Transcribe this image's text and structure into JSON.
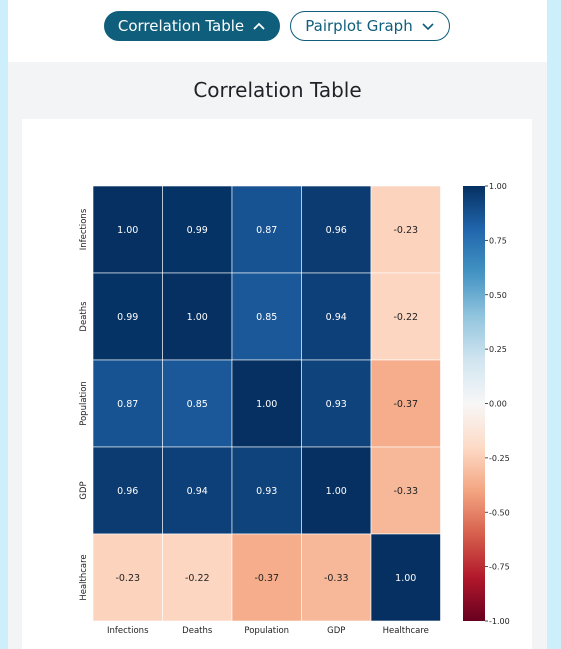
{
  "tabs": {
    "correlation_label": "Correlation Table",
    "pairplot_label": "Pairplot Graph"
  },
  "page_title": "Correlation Table",
  "chart_data": {
    "type": "heatmap",
    "x_labels": [
      "Infections",
      "Deaths",
      "Population",
      "GDP",
      "Healthcare"
    ],
    "y_labels": [
      "Infections",
      "Deaths",
      "Population",
      "GDP",
      "Healthcare"
    ],
    "values": [
      [
        1.0,
        0.99,
        0.87,
        0.96,
        -0.23
      ],
      [
        0.99,
        1.0,
        0.85,
        0.94,
        -0.22
      ],
      [
        0.87,
        0.85,
        1.0,
        0.93,
        -0.37
      ],
      [
        0.96,
        0.94,
        0.93,
        1.0,
        -0.33
      ],
      [
        -0.23,
        -0.22,
        -0.37,
        -0.33,
        1.0
      ]
    ],
    "colormap": "RdBu",
    "vmin": -1.0,
    "vmax": 1.0,
    "colorbar_ticks": [
      1.0,
      0.75,
      0.5,
      0.25,
      0.0,
      -0.25,
      -0.5,
      -0.75,
      -1.0
    ]
  }
}
